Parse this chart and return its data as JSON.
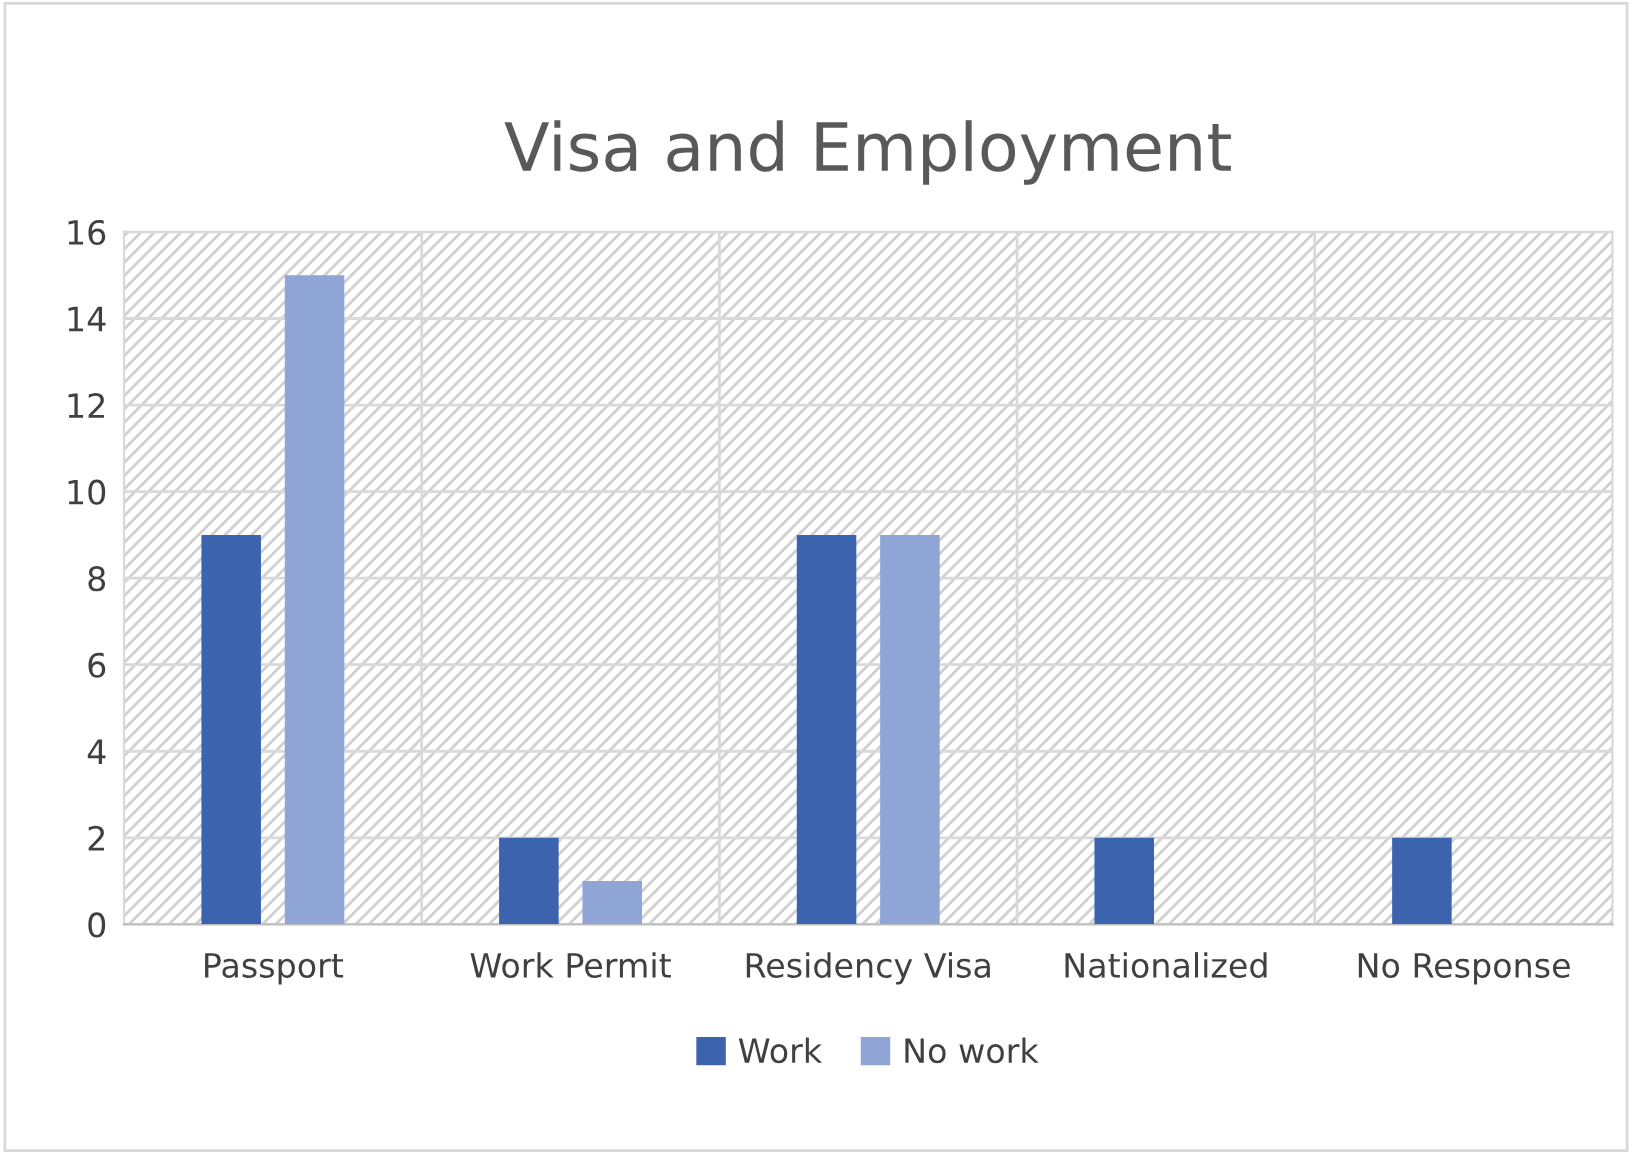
{
  "chart_data": {
    "type": "bar",
    "title": "Visa and Employment",
    "categories": [
      "Passport",
      "Work Permit",
      "Residency Visa",
      "Nationalized",
      "No Response"
    ],
    "series": [
      {
        "name": "Work",
        "color": "#3c63ad",
        "values": [
          9,
          2,
          9,
          2,
          2
        ]
      },
      {
        "name": "No work",
        "color": "#8fa5d6",
        "values": [
          15,
          1,
          9,
          0,
          0
        ]
      }
    ],
    "ylim": [
      0,
      16
    ],
    "yticks": [
      0,
      2,
      4,
      6,
      8,
      10,
      12,
      14,
      16
    ],
    "grid": true,
    "legend": "bottom"
  }
}
